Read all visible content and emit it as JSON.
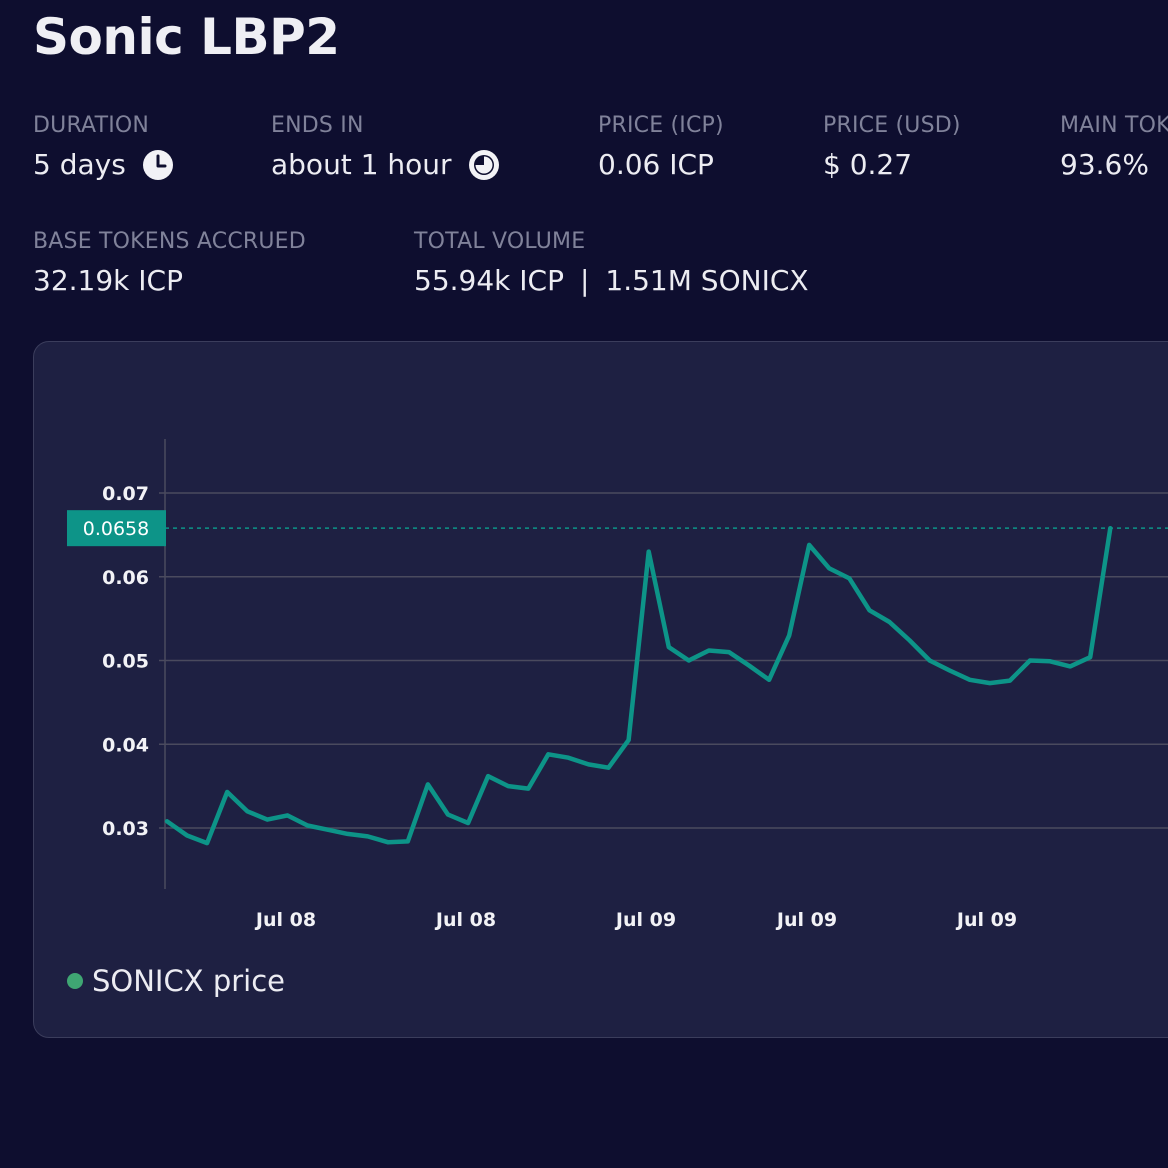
{
  "title": "Sonic LBP2",
  "stats": {
    "duration": {
      "label": "DURATION",
      "value": "5 days",
      "icon": "clock-icon"
    },
    "ends_in": {
      "label": "ENDS IN",
      "value": "about 1 hour",
      "icon": "progress-pie-icon"
    },
    "price_icp": {
      "label": "PRICE (ICP)",
      "value": "0.06 ICP"
    },
    "price_usd": {
      "label": "PRICE (USD)",
      "value": "$ 0.27"
    },
    "main_token": {
      "label": "MAIN TOKEN",
      "value": "93.6%"
    },
    "base_tokens_accrued": {
      "label": "BASE TOKENS ACCRUED",
      "value": "32.19k ICP"
    },
    "total_volume": {
      "label": "TOTAL VOLUME",
      "value_icp": "55.94k ICP",
      "separator": "|",
      "value_sonicx": "1.51M SONICX"
    }
  },
  "colors": {
    "background": "#0e0e2f",
    "card": "#1e2042",
    "line": "#0d9488",
    "legend_dot": "#3fa673",
    "grid": "#4a4a5e"
  },
  "chart_data": {
    "type": "line",
    "ylim": [
      0.0235,
      0.077
    ],
    "yticks": [
      0.03,
      0.04,
      0.05,
      0.06,
      0.07
    ],
    "ytick_labels": [
      "0.03",
      "0.04",
      "0.05",
      "0.06",
      "0.07"
    ],
    "xtick_labels": [
      "Jul 08",
      "Jul 08",
      "Jul 09",
      "Jul 09",
      "Jul 09"
    ],
    "current_price_label": "0.0658",
    "current_price": 0.0658,
    "legend_position": "bottom-left",
    "grid": true,
    "series": [
      {
        "name": "SONICX price",
        "values": [
          0.0308,
          0.0291,
          0.0282,
          0.0343,
          0.032,
          0.031,
          0.0315,
          0.0303,
          0.0298,
          0.0293,
          0.029,
          0.0283,
          0.0284,
          0.0352,
          0.0316,
          0.0306,
          0.0362,
          0.035,
          0.0347,
          0.0388,
          0.0384,
          0.0376,
          0.0372,
          0.0405,
          0.063,
          0.0516,
          0.05,
          0.0512,
          0.051,
          0.0494,
          0.0477,
          0.053,
          0.0638,
          0.061,
          0.0598,
          0.056,
          0.0546,
          0.0524,
          0.05,
          0.0488,
          0.0477,
          0.0473,
          0.0476,
          0.05,
          0.0499,
          0.0493,
          0.0504,
          0.0658
        ]
      }
    ]
  }
}
